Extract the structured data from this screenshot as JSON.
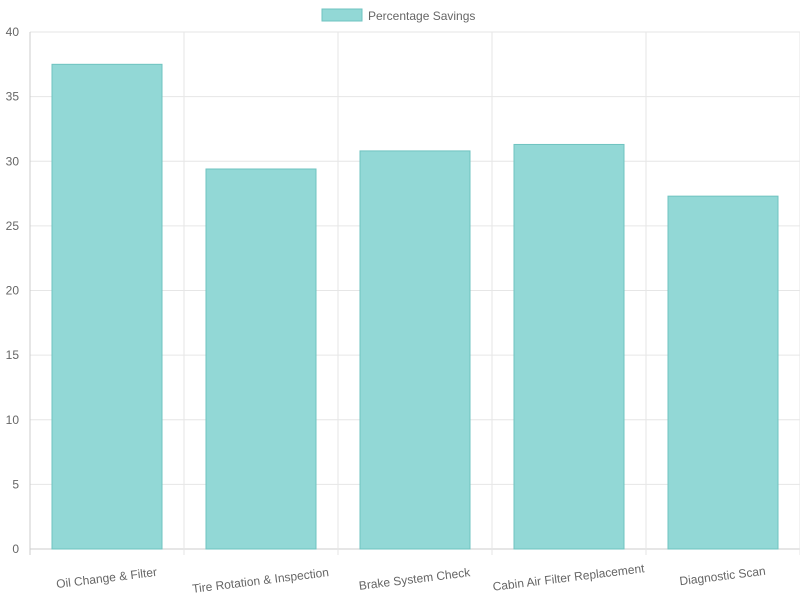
{
  "chart_data": {
    "type": "bar",
    "categories": [
      "Oil Change & Filter",
      "Tire Rotation & Inspection",
      "Brake System Check",
      "Cabin Air Filter Replacement",
      "Diagnostic Scan"
    ],
    "series": [
      {
        "name": "Percentage Savings",
        "values": [
          37.5,
          29.4,
          30.8,
          31.3,
          27.3
        ]
      }
    ],
    "ylim": [
      0,
      40
    ],
    "yticks": [
      0,
      5,
      10,
      15,
      20,
      25,
      30,
      35,
      40
    ],
    "grid": true,
    "legend_position": "top",
    "colors": {
      "bar_fill": "#92d8d6",
      "bar_stroke": "#6fc3c0"
    }
  }
}
